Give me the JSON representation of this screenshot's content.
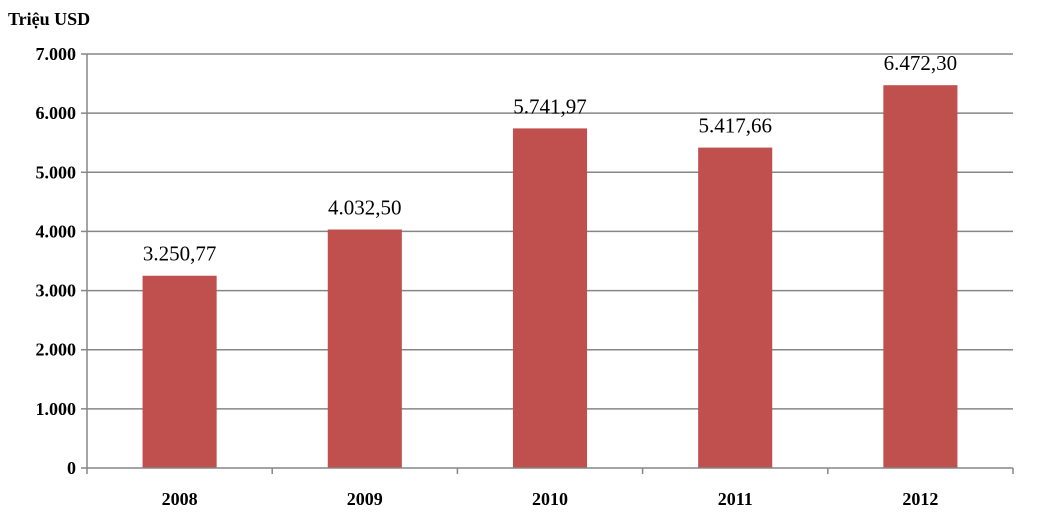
{
  "chart_data": {
    "type": "bar",
    "unit_label": "Triệu USD",
    "categories": [
      "2008",
      "2009",
      "2010",
      "2011",
      "2012"
    ],
    "values": [
      3250.77,
      4032.5,
      5741.97,
      5417.66,
      6472.3
    ],
    "data_labels": [
      "3.250,77",
      "4.032,50",
      "5.741,97",
      "5.417,66",
      "6.472,30"
    ],
    "yticks": [
      0,
      1000,
      2000,
      3000,
      4000,
      5000,
      6000,
      7000
    ],
    "ytick_labels": [
      "0",
      "1.000",
      "2.000",
      "3.000",
      "4.000",
      "5.000",
      "6.000",
      "7.000"
    ],
    "ylim": [
      0,
      7000
    ],
    "grid": true,
    "legend": "none",
    "bar_color": "#C0504D",
    "grid_color": "#868686"
  }
}
